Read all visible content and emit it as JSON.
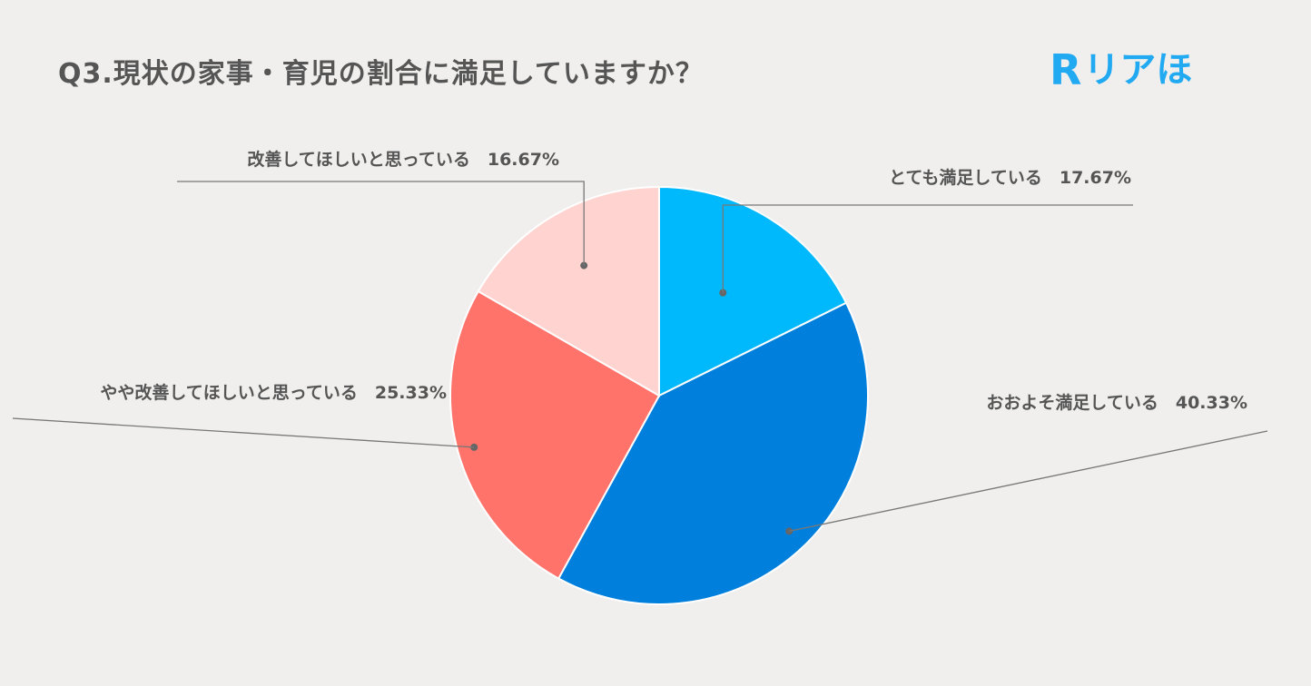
{
  "title": "Q3.現状の家事・育児の割合に満足していますか？",
  "logo": {
    "mark": "R",
    "text": "リアほ",
    "color": "#21a9f1"
  },
  "chart_data": {
    "type": "pie",
    "title": "Q3.現状の家事・育児の割合に満足していますか？",
    "slices": [
      {
        "label": "とても満足している",
        "value": 17.67,
        "display": "17.67%",
        "color": "#00b8fc"
      },
      {
        "label": "おおよそ満足している",
        "value": 40.33,
        "display": "40.33%",
        "color": "#007fdc"
      },
      {
        "label": "やや改善してほしいと思っている",
        "value": 25.33,
        "display": "25.33%",
        "color": "#ff736a"
      },
      {
        "label": "改善してほしいと思っている",
        "value": 16.67,
        "display": "16.67%",
        "color": "#ffd4d0"
      }
    ],
    "start_angle": "12 o'clock",
    "direction": "clockwise",
    "legend": "none"
  }
}
